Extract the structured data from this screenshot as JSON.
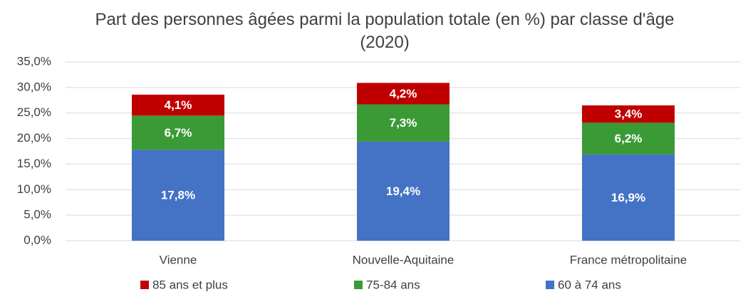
{
  "chart_data": {
    "type": "stacked_bar",
    "title": "Part des personnes âgées parmi la population totale (en %) par classe d'âge (2020)",
    "categories": [
      "Vienne",
      "Nouvelle-Aquitaine",
      "France métropolitaine"
    ],
    "series": [
      {
        "name": "60 à 74 ans",
        "color": "#4472c4",
        "values": [
          17.8,
          19.4,
          16.9
        ],
        "value_labels": [
          "17,8%",
          "19,4%",
          "16,9%"
        ]
      },
      {
        "name": "75-84 ans",
        "color": "#3a9a35",
        "values": [
          6.7,
          7.3,
          6.2
        ],
        "value_labels": [
          "6,7%",
          "7,3%",
          "6,2%"
        ]
      },
      {
        "name": "85 ans et plus",
        "color": "#c00000",
        "values": [
          4.1,
          4.2,
          3.4
        ],
        "value_labels": [
          "4,1%",
          "4,2%",
          "3,4%"
        ]
      }
    ],
    "ylim": [
      0,
      35
    ],
    "yticks": [
      {
        "value": 0,
        "label": "0,0%"
      },
      {
        "value": 5,
        "label": "5,0%"
      },
      {
        "value": 10,
        "label": "10,0%"
      },
      {
        "value": 15,
        "label": "15,0%"
      },
      {
        "value": 20,
        "label": "20,0%"
      },
      {
        "value": 25,
        "label": "25,0%"
      },
      {
        "value": 30,
        "label": "30,0%"
      },
      {
        "value": 35,
        "label": "35,0%"
      }
    ],
    "grid": true,
    "legend": "bottom"
  }
}
